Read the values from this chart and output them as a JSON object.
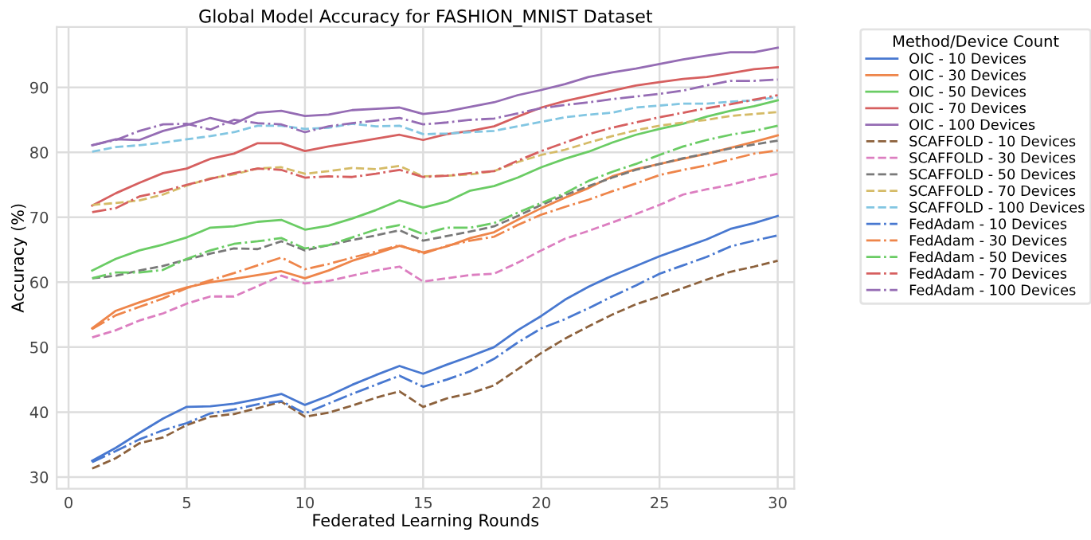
{
  "chart_data": {
    "type": "line",
    "title": "Global Model Accuracy for FASHION_MNIST Dataset",
    "xlabel": "Federated Learning Rounds",
    "ylabel": "Accuracy (%)",
    "legend_title": "Method/Device Count",
    "x": [
      1,
      2,
      3,
      4,
      5,
      6,
      7,
      8,
      9,
      10,
      11,
      12,
      13,
      14,
      15,
      16,
      17,
      18,
      19,
      20,
      21,
      22,
      23,
      24,
      25,
      26,
      27,
      28,
      29,
      30
    ],
    "xlim": [
      -0.5,
      30.7
    ],
    "ylim": [
      28.2,
      99.3
    ],
    "xticks": [
      0,
      5,
      10,
      15,
      20,
      25,
      30
    ],
    "yticks": [
      30,
      40,
      50,
      60,
      70,
      80,
      90
    ],
    "grid": true,
    "legend": "top right",
    "marker": "none",
    "series": [
      {
        "name": "OIC - 10 Devices",
        "color": "#4878d0",
        "line_style": "solid",
        "values": [
          32.5,
          34.5,
          36.8,
          39,
          40.8,
          40.9,
          41.3,
          42,
          42.8,
          41.1,
          42.5,
          44.2,
          45.7,
          47.1,
          45.9,
          47.3,
          48.6,
          50,
          52.6,
          54.8,
          57.3,
          59.3,
          61,
          62.5,
          64,
          65.3,
          66.6,
          68.2,
          69.1,
          70.2
        ]
      },
      {
        "name": "OIC - 30 Devices",
        "color": "#ee854a",
        "line_style": "solid",
        "values": [
          52.9,
          55.6,
          56.9,
          58.1,
          59.2,
          60,
          60.5,
          61.1,
          61.7,
          60.6,
          61.8,
          63.3,
          64.4,
          65.6,
          64.6,
          65.5,
          66.8,
          67.7,
          69.6,
          71.4,
          73,
          74.5,
          76.3,
          77.4,
          78.2,
          79,
          79.8,
          80.7,
          81.6,
          82.6
        ]
      },
      {
        "name": "OIC - 50 Devices",
        "color": "#6acc64",
        "line_style": "solid",
        "values": [
          61.8,
          63.6,
          64.9,
          65.8,
          66.9,
          68.4,
          68.6,
          69.3,
          69.6,
          68.1,
          68.7,
          69.8,
          71.1,
          72.6,
          71.5,
          72.4,
          74.1,
          74.8,
          76.1,
          77.7,
          79,
          80.1,
          81.5,
          82.7,
          83.6,
          84.4,
          85.5,
          86.4,
          87.1,
          88
        ]
      },
      {
        "name": "OIC - 70 Devices",
        "color": "#d65f5f",
        "line_style": "solid",
        "values": [
          71.8,
          73.7,
          75.3,
          76.8,
          77.5,
          79,
          79.8,
          81.4,
          81.4,
          80.2,
          80.9,
          81.5,
          82.1,
          82.7,
          81.9,
          82.8,
          83.3,
          84,
          85.5,
          86.9,
          87.9,
          88.7,
          89.5,
          90.3,
          90.8,
          91.3,
          91.6,
          92.2,
          92.8,
          93.1
        ]
      },
      {
        "name": "OIC - 100 Devices",
        "color": "#956cb4",
        "line_style": "solid",
        "values": [
          81.1,
          82,
          81.9,
          83.3,
          84.2,
          85.3,
          84.4,
          86.1,
          86.4,
          85.6,
          85.8,
          86.5,
          86.7,
          86.9,
          85.9,
          86.3,
          87,
          87.7,
          88.8,
          89.6,
          90.5,
          91.6,
          92.3,
          92.9,
          93.6,
          94.3,
          94.9,
          95.4,
          95.4,
          96.1
        ]
      },
      {
        "name": "SCAFFOLD - 10 Devices",
        "color": "#8c613c",
        "line_style": "dashed",
        "values": [
          31.3,
          32.9,
          35.2,
          36.1,
          38,
          39.3,
          39.7,
          40.6,
          41.6,
          39.3,
          39.9,
          41,
          42.2,
          43.2,
          40.8,
          42.1,
          42.9,
          44.1,
          46.6,
          49.1,
          51.3,
          53.2,
          55,
          56.6,
          57.8,
          59.1,
          60.4,
          61.6,
          62.4,
          63.3
        ]
      },
      {
        "name": "SCAFFOLD - 30 Devices",
        "color": "#dc7ec0",
        "line_style": "dashed",
        "values": [
          51.5,
          52.6,
          54.1,
          55.2,
          56.7,
          57.8,
          57.8,
          59.4,
          61,
          59.8,
          60.2,
          61,
          61.8,
          62.4,
          60.1,
          60.6,
          61.1,
          61.3,
          63,
          64.9,
          66.7,
          67.9,
          69.2,
          70.5,
          71.9,
          73.5,
          74.3,
          75,
          75.9,
          76.7
        ]
      },
      {
        "name": "SCAFFOLD - 50 Devices",
        "color": "#797979",
        "line_style": "dashed",
        "values": [
          60.6,
          61,
          61.8,
          62.5,
          63.5,
          64.4,
          65.2,
          65.1,
          66.3,
          64.9,
          65.7,
          66.5,
          67.2,
          68,
          66.4,
          67.1,
          67.8,
          68.6,
          70.2,
          71.9,
          73.4,
          74.8,
          76.1,
          77.3,
          78.2,
          79.1,
          79.8,
          80.6,
          81.2,
          81.8
        ]
      },
      {
        "name": "SCAFFOLD - 70 Devices",
        "color": "#d5bb67",
        "line_style": "dashed",
        "values": [
          71.9,
          72.2,
          72.6,
          73.5,
          74.9,
          76,
          76.6,
          77.5,
          77.7,
          76.7,
          77.1,
          77.6,
          77.4,
          77.9,
          76.3,
          76.4,
          76.6,
          77.1,
          78.5,
          79.6,
          80.4,
          81.5,
          82.5,
          83.4,
          84.1,
          84.6,
          85,
          85.6,
          85.9,
          86.2
        ]
      },
      {
        "name": "SCAFFOLD - 100 Devices",
        "color": "#82c6e2",
        "line_style": "dashed",
        "values": [
          80.1,
          80.8,
          81.1,
          81.5,
          82,
          82.5,
          83.1,
          84.1,
          84.1,
          83.6,
          83.8,
          84.4,
          84,
          84.1,
          82.8,
          82.9,
          83.1,
          83.3,
          84,
          84.7,
          85.4,
          85.8,
          86.1,
          86.9,
          87.2,
          87.5,
          87.5,
          87.8,
          88,
          88.5
        ]
      },
      {
        "name": "FedAdam - 10 Devices",
        "color": "#4878d0",
        "line_style": "dashdot",
        "values": [
          32.3,
          34,
          35.8,
          37.2,
          38.3,
          39.8,
          40.4,
          41.2,
          41.7,
          39.8,
          41.3,
          42.8,
          44.2,
          45.6,
          43.9,
          45,
          46.3,
          48.2,
          50.7,
          52.9,
          54.3,
          56,
          57.8,
          59.5,
          61.3,
          62.6,
          63.9,
          65.5,
          66.4,
          67.2
        ]
      },
      {
        "name": "FedAdam - 30 Devices",
        "color": "#ee854a",
        "line_style": "dashdot",
        "values": [
          52.8,
          54.9,
          56.2,
          57.5,
          59.1,
          60.3,
          61.4,
          62.6,
          63.8,
          62,
          62.8,
          63.8,
          64.7,
          65.7,
          64.4,
          65.6,
          66.4,
          67,
          68.8,
          70.4,
          71.6,
          72.7,
          74,
          75.2,
          76.5,
          77.3,
          78,
          78.9,
          79.8,
          80.3
        ]
      },
      {
        "name": "FedAdam - 50 Devices",
        "color": "#6acc64",
        "line_style": "dashdot",
        "values": [
          60.6,
          61.5,
          61.5,
          61.9,
          63.6,
          64.9,
          65.9,
          66.3,
          66.8,
          65.2,
          65.7,
          66.9,
          68.1,
          68.8,
          67.4,
          68.4,
          68.4,
          69.1,
          70.7,
          72.2,
          73.7,
          75.6,
          77,
          78.2,
          79.6,
          80.9,
          81.9,
          82.7,
          83.3,
          84.1
        ]
      },
      {
        "name": "FedAdam - 70 Devices",
        "color": "#d65f5f",
        "line_style": "dashdot",
        "values": [
          70.8,
          71.4,
          73.2,
          74,
          75,
          75.9,
          76.8,
          77.5,
          77.3,
          76.1,
          76.3,
          76.2,
          76.7,
          77.3,
          76.2,
          76.4,
          76.8,
          77.1,
          78.7,
          80.2,
          81.5,
          82.8,
          83.8,
          84.6,
          85.4,
          86.1,
          86.8,
          87.4,
          88.1,
          88.8
        ]
      },
      {
        "name": "FedAdam - 100 Devices",
        "color": "#956cb4",
        "line_style": "dashdot",
        "values": [
          81.1,
          81.9,
          83.3,
          84.3,
          84.4,
          83.5,
          85,
          84.5,
          84.3,
          83.1,
          84,
          84.5,
          84.9,
          85.3,
          84.3,
          84.6,
          85,
          85.2,
          86,
          86.8,
          87.3,
          87.7,
          88.2,
          88.6,
          89,
          89.5,
          90.3,
          91,
          91,
          91.2
        ]
      }
    ]
  }
}
